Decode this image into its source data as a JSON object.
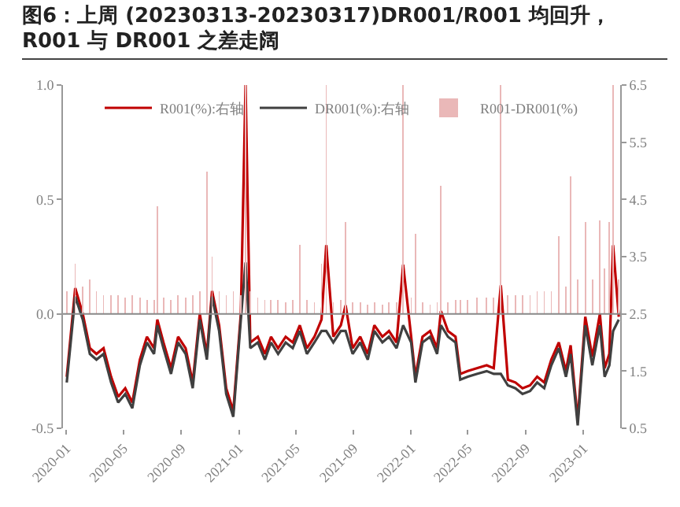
{
  "chart_data": {
    "type": "line",
    "title": "图6：上周 (20230313-20230317)DR001/R001  均回升，R001 与 DR001 之差走阔",
    "x": [
      "2020-01-02",
      "2020-01-20",
      "2020-02-05",
      "2020-02-20",
      "2020-03-05",
      "2020-03-20",
      "2020-04-05",
      "2020-04-20",
      "2020-05-05",
      "2020-05-20",
      "2020-06-05",
      "2020-06-20",
      "2020-07-05",
      "2020-07-12",
      "2020-07-25",
      "2020-08-10",
      "2020-08-25",
      "2020-09-10",
      "2020-09-25",
      "2020-10-10",
      "2020-10-25",
      "2020-11-05",
      "2020-11-20",
      "2020-12-05",
      "2020-12-20",
      "2021-01-05",
      "2021-01-15",
      "2021-01-25",
      "2021-02-10",
      "2021-02-25",
      "2021-03-10",
      "2021-03-25",
      "2021-04-10",
      "2021-04-25",
      "2021-05-10",
      "2021-05-25",
      "2021-06-10",
      "2021-06-25",
      "2021-07-05",
      "2021-07-20",
      "2021-08-05",
      "2021-08-15",
      "2021-08-30",
      "2021-09-15",
      "2021-10-01",
      "2021-10-15",
      "2021-11-01",
      "2021-11-15",
      "2021-12-01",
      "2021-12-15",
      "2022-01-01",
      "2022-01-10",
      "2022-01-25",
      "2022-02-10",
      "2022-02-25",
      "2022-03-05",
      "2022-03-20",
      "2022-04-05",
      "2022-04-15",
      "2022-05-01",
      "2022-05-20",
      "2022-06-10",
      "2022-06-25",
      "2022-07-10",
      "2022-07-25",
      "2022-08-10",
      "2022-08-25",
      "2022-09-10",
      "2022-09-25",
      "2022-10-10",
      "2022-10-25",
      "2022-11-10",
      "2022-11-25",
      "2022-12-05",
      "2022-12-20",
      "2023-01-05",
      "2023-01-20",
      "2023-02-05",
      "2023-02-15",
      "2023-02-25",
      "2023-03-05",
      "2023-03-17"
    ],
    "series": [
      {
        "name": "R001-DR001(%)",
        "type": "bar",
        "color": "#eab8b8",
        "values": [
          0.1,
          0.22,
          0.12,
          0.15,
          0.1,
          0.08,
          0.08,
          0.08,
          0.07,
          0.08,
          0.07,
          0.06,
          0.06,
          0.47,
          0.07,
          0.06,
          0.08,
          0.07,
          0.08,
          0.1,
          0.62,
          0.25,
          0.1,
          0.08,
          0.1,
          0.08,
          1.0,
          0.1,
          0.07,
          0.06,
          0.06,
          0.06,
          0.05,
          0.06,
          0.3,
          0.06,
          0.05,
          0.22,
          1.0,
          0.05,
          0.06,
          0.4,
          0.05,
          0.05,
          0.04,
          0.05,
          0.04,
          0.05,
          0.05,
          1.0,
          0.07,
          0.35,
          0.05,
          0.04,
          0.05,
          0.56,
          0.05,
          0.06,
          0.06,
          0.06,
          0.07,
          0.07,
          0.07,
          1.0,
          0.08,
          0.08,
          0.08,
          0.08,
          0.1,
          0.1,
          0.1,
          0.34,
          0.12,
          0.6,
          0.15,
          0.4,
          0.15,
          0.41,
          0.2,
          0.4,
          1.0,
          0.15
        ]
      },
      {
        "name": "R001(%):右轴",
        "axis": "y2",
        "color": "#c00000",
        "values": [
          1.4,
          2.95,
          2.5,
          1.9,
          1.8,
          1.9,
          1.4,
          1.05,
          1.2,
          0.95,
          1.7,
          2.1,
          1.9,
          2.4,
          2.0,
          1.55,
          2.1,
          1.9,
          1.3,
          2.5,
          1.8,
          2.9,
          2.3,
          1.2,
          0.8,
          2.5,
          6.5,
          2.0,
          2.1,
          1.8,
          2.1,
          1.9,
          2.1,
          2.0,
          2.3,
          1.9,
          2.1,
          2.4,
          3.7,
          2.1,
          2.3,
          2.65,
          1.9,
          2.1,
          1.8,
          2.3,
          2.1,
          2.2,
          2.0,
          3.36,
          2.1,
          1.4,
          2.1,
          2.2,
          1.9,
          2.55,
          2.2,
          2.1,
          1.45,
          1.5,
          1.55,
          1.6,
          1.55,
          3.0,
          1.35,
          1.3,
          1.2,
          1.25,
          1.4,
          1.3,
          1.7,
          2.0,
          1.5,
          1.95,
          0.65,
          2.45,
          1.75,
          2.5,
          1.55,
          1.8,
          3.7,
          2.45
        ]
      },
      {
        "name": "DR001(%):右轴",
        "axis": "y2",
        "color": "#404040",
        "values": [
          1.3,
          2.8,
          2.4,
          1.8,
          1.7,
          1.8,
          1.3,
          0.95,
          1.1,
          0.85,
          1.6,
          2.0,
          1.8,
          2.3,
          1.9,
          1.45,
          2.0,
          1.8,
          1.2,
          2.4,
          1.7,
          2.8,
          2.2,
          1.1,
          0.7,
          2.4,
          3.4,
          1.9,
          2.0,
          1.7,
          2.0,
          1.8,
          2.0,
          1.9,
          2.2,
          1.8,
          2.0,
          2.2,
          2.2,
          2.0,
          2.2,
          2.2,
          1.8,
          2.0,
          1.7,
          2.2,
          2.0,
          2.1,
          1.9,
          2.3,
          2.0,
          1.3,
          2.0,
          2.1,
          1.8,
          2.3,
          2.1,
          2.0,
          1.35,
          1.4,
          1.45,
          1.5,
          1.45,
          1.45,
          1.25,
          1.2,
          1.1,
          1.15,
          1.3,
          1.2,
          1.6,
          1.9,
          1.4,
          1.8,
          0.55,
          2.3,
          1.6,
          2.3,
          1.4,
          1.6,
          2.2,
          2.4
        ]
      }
    ],
    "xlim": [
      "2019-12-25",
      "2023-03-20"
    ],
    "xticks": [
      "2020-01",
      "2020-05",
      "2020-09",
      "2021-01",
      "2021-05",
      "2021-09",
      "2022-01",
      "2022-05",
      "2022-09",
      "2023-01"
    ],
    "ylim": [
      -0.5,
      1.0
    ],
    "yticks": [
      {
        "value": -0.5,
        "label": "-0.5"
      },
      {
        "value": 0,
        "label": "0.0"
      },
      {
        "value": 0.5,
        "label": "0.5"
      },
      {
        "value": 1,
        "label": "1.0"
      }
    ],
    "y2lim": [
      0.5,
      6.5
    ],
    "y2ticks": [
      0.5,
      1.5,
      2.5,
      3.5,
      4.5,
      5.5,
      6.5
    ],
    "ref_lines": [
      {
        "axis": "y",
        "value": 0,
        "color": "#888888"
      }
    ],
    "grid": false,
    "legend": "top"
  }
}
